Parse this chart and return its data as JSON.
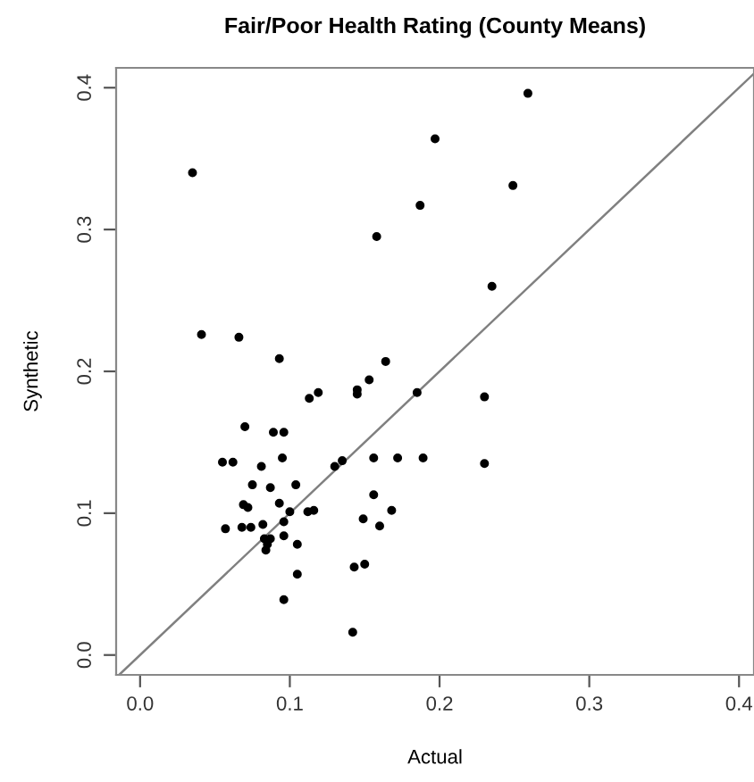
{
  "chart_data": {
    "type": "scatter",
    "title": "Fair/Poor Health Rating (County Means)",
    "xlabel": "Actual",
    "ylabel": "Synthetic",
    "xlim": [
      -0.016,
      0.41
    ],
    "ylim": [
      -0.014,
      0.414
    ],
    "xticks": [
      {
        "value": 0,
        "label": "0.0"
      },
      0.1,
      0.2,
      0.3,
      0.4
    ],
    "yticks": [
      {
        "value": 0,
        "label": "0.0"
      },
      0.1,
      0.2,
      0.3,
      0.4
    ],
    "grid": false,
    "legend": false,
    "marker": "circle",
    "series": [
      {
        "color": "#000000",
        "x": [
          0.035,
          0.187,
          0.158,
          0.041,
          0.066,
          0.093,
          0.164,
          0.153,
          0.145,
          0.145,
          0.119,
          0.113,
          0.185,
          0.259,
          0.197,
          0.249,
          0.235,
          0.23,
          0.07,
          0.089,
          0.096,
          0.055,
          0.062,
          0.095,
          0.081,
          0.13,
          0.135,
          0.156,
          0.172,
          0.189,
          0.23,
          0.075,
          0.087,
          0.104,
          0.156,
          0.069,
          0.072,
          0.093,
          0.1,
          0.112,
          0.116,
          0.168,
          0.149,
          0.16,
          0.057,
          0.068,
          0.074,
          0.082,
          0.096,
          0.096,
          0.083,
          0.087,
          0.085,
          0.084,
          0.105,
          0.143,
          0.15,
          0.105,
          0.096,
          0.142
        ],
        "values": [
          0.34,
          0.317,
          0.295,
          0.226,
          0.224,
          0.209,
          0.207,
          0.194,
          0.187,
          0.184,
          0.185,
          0.181,
          0.185,
          0.396,
          0.364,
          0.331,
          0.26,
          0.182,
          0.161,
          0.157,
          0.157,
          0.136,
          0.136,
          0.139,
          0.133,
          0.133,
          0.137,
          0.139,
          0.139,
          0.139,
          0.135,
          0.12,
          0.118,
          0.12,
          0.113,
          0.106,
          0.104,
          0.107,
          0.101,
          0.101,
          0.102,
          0.102,
          0.096,
          0.091,
          0.089,
          0.09,
          0.09,
          0.092,
          0.094,
          0.084,
          0.082,
          0.082,
          0.078,
          0.074,
          0.078,
          0.062,
          0.064,
          0.057,
          0.039,
          0.016
        ]
      },
      {
        "type": "line",
        "color": "#808080",
        "marker": "none",
        "x": [
          -0.014,
          0.41
        ],
        "values": [
          -0.014,
          0.41
        ]
      }
    ]
  }
}
